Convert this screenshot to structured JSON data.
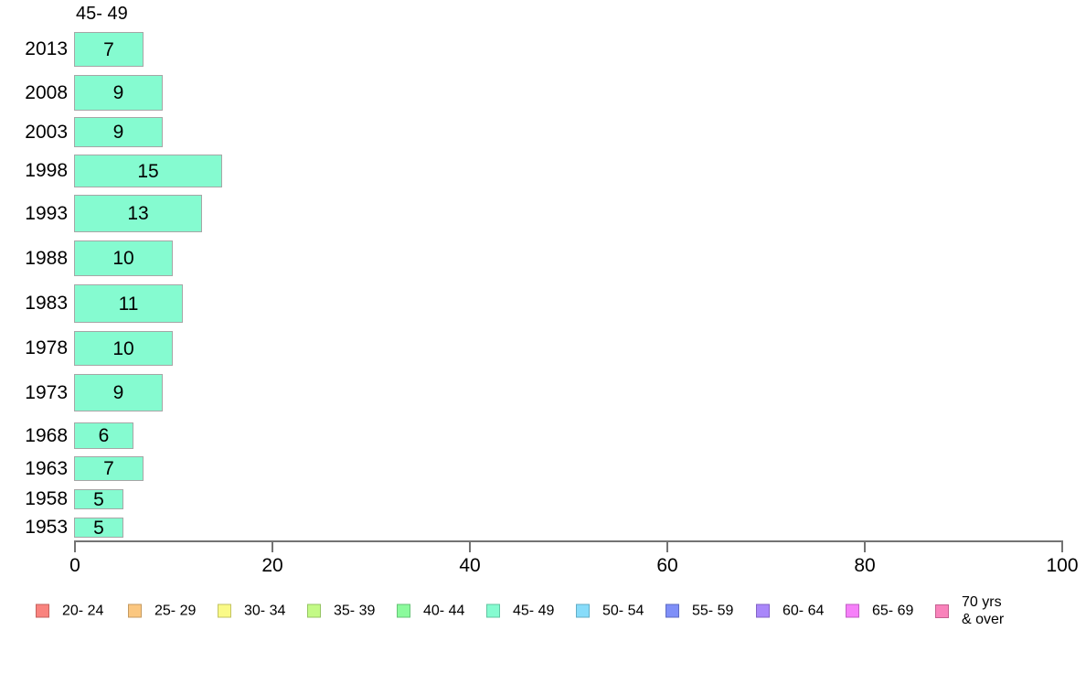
{
  "chart_data": {
    "type": "bar",
    "orientation": "horizontal",
    "title": "45- 49",
    "categories": [
      "2013",
      "2008",
      "2003",
      "1998",
      "1993",
      "1988",
      "1983",
      "1978",
      "1973",
      "1968",
      "1963",
      "1958",
      "1953"
    ],
    "values": [
      7,
      9,
      9,
      15,
      13,
      10,
      11,
      10,
      9,
      6,
      7,
      5,
      5
    ],
    "bar_value_labels": [
      "7",
      "9",
      "9",
      "15",
      "13",
      "10",
      "11",
      "10",
      "9",
      "6",
      "7",
      "5",
      "5"
    ],
    "xlabel": "",
    "ylabel": "",
    "xlim": [
      0,
      100
    ],
    "x_ticks": [
      0,
      20,
      40,
      60,
      80,
      100
    ],
    "x_tick_labels": [
      "0",
      "20",
      "40",
      "60",
      "80",
      "100"
    ],
    "grid": "off",
    "legend_position": "bottom",
    "bar_fill_color": "#85FBD0",
    "bar_border_color": "#A6A6A6",
    "axis_color": "#737373",
    "text_color": "#000000",
    "background_color": "#FFFFFF",
    "legend": [
      {
        "label": "20- 24",
        "color": "#F9837E",
        "border": "#C4625E"
      },
      {
        "label": "25- 29",
        "color": "#FBC780",
        "border": "#C49A60"
      },
      {
        "label": "30- 34",
        "color": "#FAFA87",
        "border": "#C2C263"
      },
      {
        "label": "35- 39",
        "color": "#C3FA86",
        "border": "#95C463"
      },
      {
        "label": "40- 44",
        "color": "#8BFA9C",
        "border": "#66C376"
      },
      {
        "label": "45- 49",
        "color": "#85FBD0",
        "border": "#61C4A1"
      },
      {
        "label": "50- 54",
        "color": "#87DCFA",
        "border": "#63ADC4"
      },
      {
        "label": "55- 59",
        "color": "#7F8FF8",
        "border": "#5E6BC2"
      },
      {
        "label": "60- 64",
        "color": "#A987FA",
        "border": "#8263C4"
      },
      {
        "label": "65- 69",
        "color": "#F680F9",
        "border": "#C05EC3"
      },
      {
        "label": "70 yrs\n& over",
        "color": "#F983BB",
        "border": "#C46090"
      }
    ]
  }
}
